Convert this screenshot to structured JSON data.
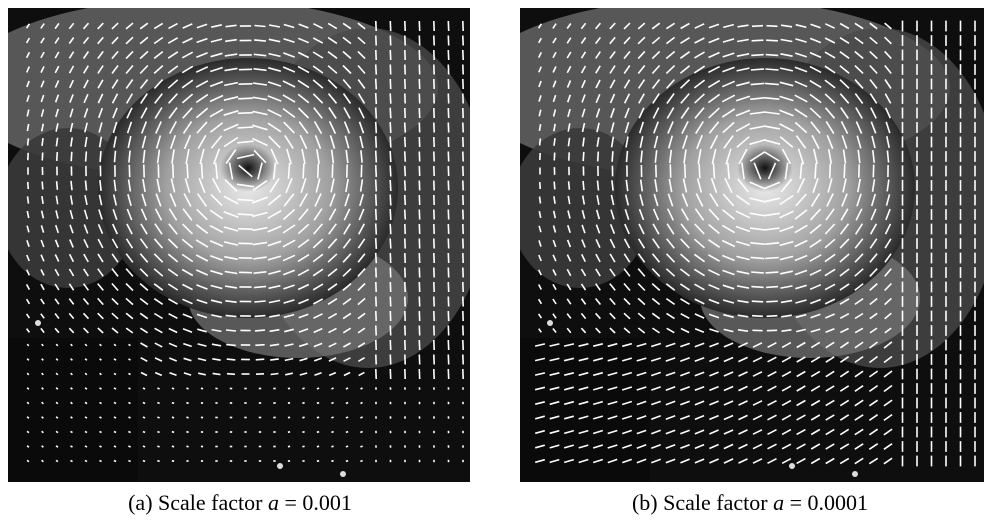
{
  "figure": {
    "panels": [
      {
        "label": "(a)",
        "text": "Scale factor",
        "symbol": "a",
        "relation": "=",
        "value": 0.001
      },
      {
        "label": "(b)",
        "text": "Scale factor",
        "symbol": "a",
        "relation": "=",
        "value": 0.0001
      }
    ]
  }
}
